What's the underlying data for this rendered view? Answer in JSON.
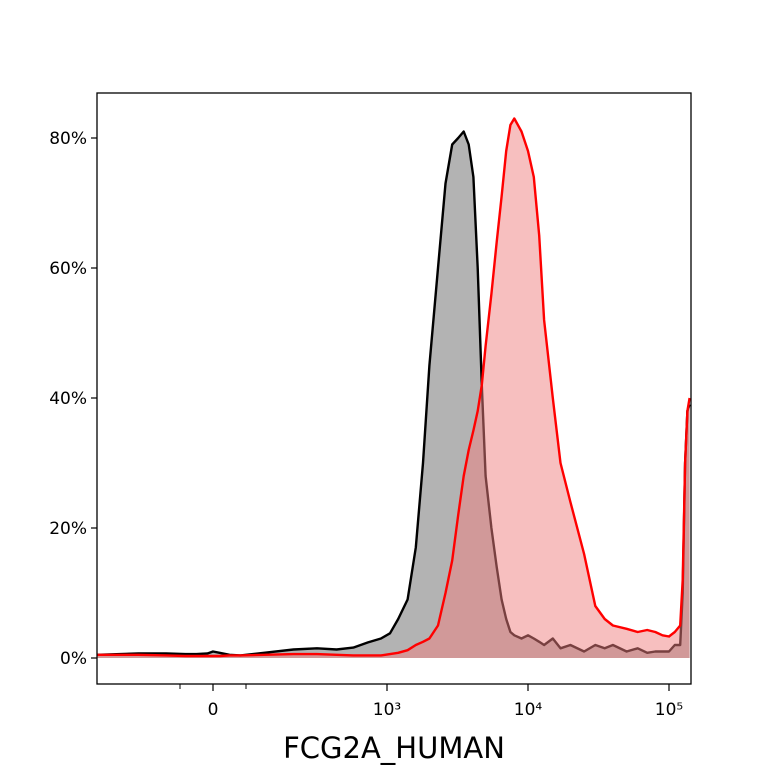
{
  "chart_data": {
    "type": "area",
    "title": "",
    "xlabel": "FCG2A_HUMAN",
    "ylabel": "",
    "x_scale": "biexponential",
    "xlim": [
      -600,
      140000
    ],
    "ylim": [
      -0.04,
      0.87
    ],
    "grid": false,
    "legend": "none",
    "x_ticks": [
      {
        "value": 0,
        "label": "0"
      },
      {
        "value": 1000,
        "label": "10³"
      },
      {
        "value": 10000,
        "label": "10⁴"
      },
      {
        "value": 100000,
        "label": "10⁵"
      }
    ],
    "x_minor_ticks": [
      -300,
      300
    ],
    "y_ticks": [
      {
        "value": 0.0,
        "label": "0%"
      },
      {
        "value": 0.2,
        "label": "20%"
      },
      {
        "value": 0.4,
        "label": "40%"
      },
      {
        "value": 0.6,
        "label": "60%"
      },
      {
        "value": 0.8,
        "label": "80%"
      }
    ],
    "series": [
      {
        "name": "",
        "line_color": "#000000",
        "fill_color": "#808080",
        "fill_opacity": 0.6,
        "x": [
          -600,
          -450,
          -350,
          -250,
          -150,
          -50,
          0,
          60,
          150,
          250,
          350,
          450,
          550,
          650,
          750,
          850,
          950,
          1050,
          1200,
          1400,
          1600,
          1800,
          2000,
          2300,
          2600,
          2900,
          3200,
          3500,
          3800,
          4100,
          4400,
          4700,
          5000,
          5500,
          6000,
          6500,
          7000,
          7500,
          8000,
          9000,
          10000,
          11000,
          12000,
          13000,
          15000,
          17000,
          20000,
          25000,
          30000,
          35000,
          40000,
          50000,
          60000,
          70000,
          80000,
          90000,
          100000,
          110000,
          120000,
          125000,
          130000,
          135000,
          140000
        ],
        "values": [
          0.005,
          0.007,
          0.007,
          0.006,
          0.006,
          0.007,
          0.01,
          0.008,
          0.005,
          0.004,
          0.008,
          0.013,
          0.015,
          0.013,
          0.016,
          0.024,
          0.03,
          0.038,
          0.06,
          0.09,
          0.17,
          0.3,
          0.45,
          0.6,
          0.73,
          0.79,
          0.8,
          0.81,
          0.79,
          0.74,
          0.6,
          0.42,
          0.28,
          0.2,
          0.14,
          0.09,
          0.06,
          0.04,
          0.035,
          0.03,
          0.035,
          0.03,
          0.025,
          0.02,
          0.03,
          0.015,
          0.02,
          0.01,
          0.02,
          0.015,
          0.02,
          0.01,
          0.015,
          0.008,
          0.01,
          0.01,
          0.01,
          0.02,
          0.02,
          0.1,
          0.3,
          0.38,
          0.39
        ]
      },
      {
        "name": "",
        "line_color": "#ff0000",
        "fill_color": "#f08080",
        "fill_opacity": 0.5,
        "x": [
          -600,
          -450,
          -350,
          -250,
          -150,
          -50,
          0,
          60,
          150,
          250,
          350,
          450,
          550,
          650,
          750,
          850,
          950,
          1050,
          1200,
          1400,
          1600,
          1800,
          2000,
          2300,
          2600,
          2900,
          3200,
          3500,
          3800,
          4100,
          4400,
          4700,
          5000,
          5500,
          6000,
          6500,
          7000,
          7500,
          8000,
          9000,
          10000,
          11000,
          12000,
          13000,
          15000,
          17000,
          20000,
          25000,
          30000,
          35000,
          40000,
          50000,
          60000,
          70000,
          80000,
          90000,
          100000,
          110000,
          120000,
          125000,
          130000,
          135000,
          140000
        ],
        "values": [
          0.005,
          0.005,
          0.004,
          0.003,
          0.003,
          0.003,
          0.003,
          0.003,
          0.004,
          0.004,
          0.005,
          0.006,
          0.006,
          0.005,
          0.004,
          0.004,
          0.004,
          0.006,
          0.008,
          0.012,
          0.02,
          0.025,
          0.03,
          0.05,
          0.1,
          0.15,
          0.22,
          0.28,
          0.32,
          0.35,
          0.38,
          0.42,
          0.48,
          0.56,
          0.64,
          0.71,
          0.78,
          0.82,
          0.83,
          0.81,
          0.78,
          0.74,
          0.65,
          0.52,
          0.4,
          0.3,
          0.24,
          0.16,
          0.08,
          0.06,
          0.05,
          0.045,
          0.04,
          0.043,
          0.04,
          0.035,
          0.033,
          0.04,
          0.05,
          0.12,
          0.3,
          0.38,
          0.4
        ]
      }
    ]
  }
}
